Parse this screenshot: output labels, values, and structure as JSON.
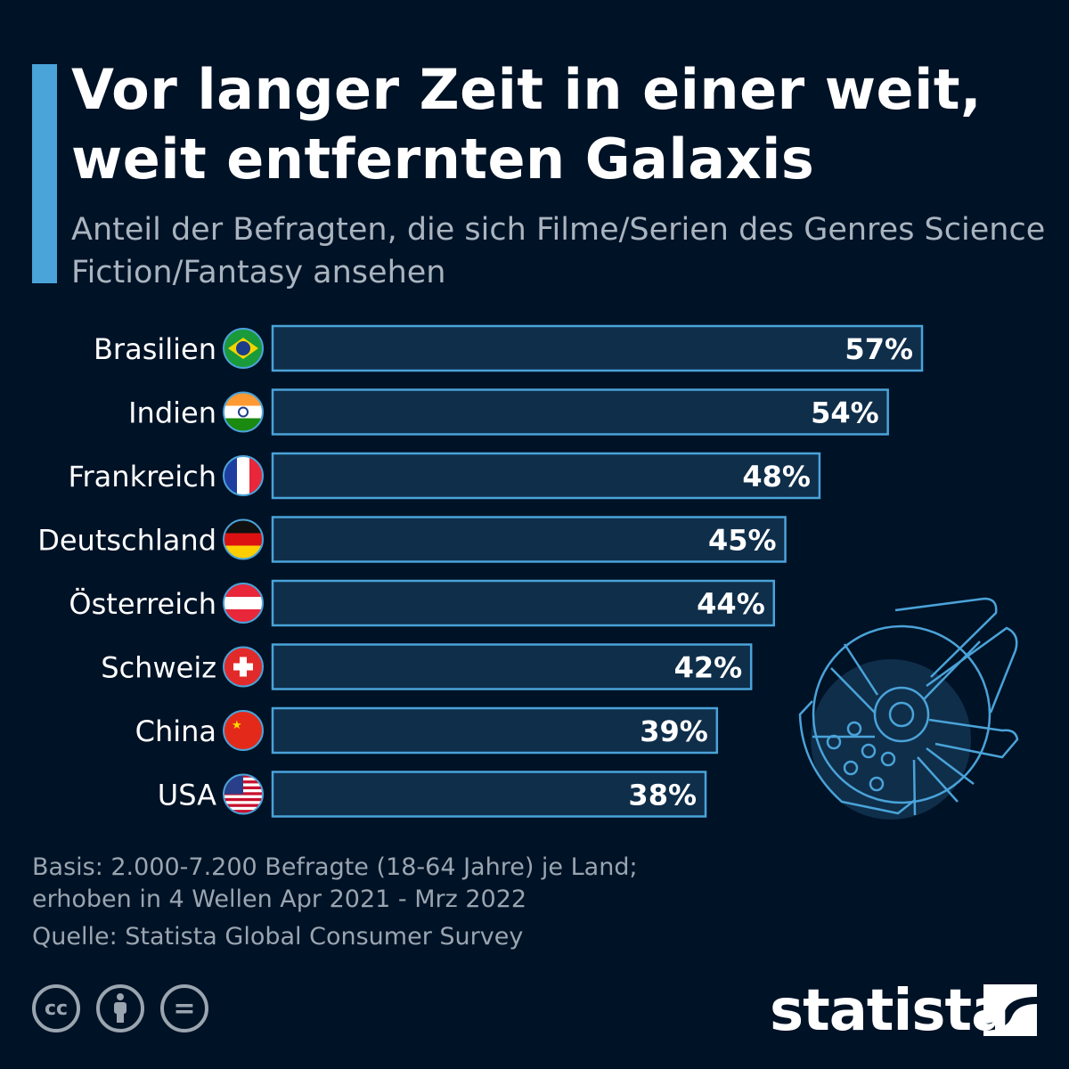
{
  "header": {
    "title_line1": "Vor langer Zeit in einer weit,",
    "title_line2": "weit entfernten Galaxis",
    "subtitle": "Anteil der Befragten, die sich Filme/Serien des Genres Science Fiction/Fantasy ansehen"
  },
  "chart_data": {
    "type": "bar",
    "orientation": "horizontal",
    "categories": [
      "Brasilien",
      "Indien",
      "Frankreich",
      "Deutschland",
      "Österreich",
      "Schweiz",
      "China",
      "USA"
    ],
    "values": [
      57,
      54,
      48,
      45,
      44,
      42,
      39,
      38
    ],
    "value_labels": [
      "57%",
      "54%",
      "48%",
      "45%",
      "44%",
      "42%",
      "39%",
      "38%"
    ],
    "unit": "%",
    "xlim": [
      0,
      100
    ],
    "grid": false,
    "colors": {
      "bar_fill": "#0f2e4a",
      "bar_border": "#4aa3d9",
      "background": "#001226"
    },
    "flags": [
      "brazil-flag",
      "india-flag",
      "france-flag",
      "germany-flag",
      "austria-flag",
      "switzerland-flag",
      "china-flag",
      "usa-flag"
    ]
  },
  "footer": {
    "basis_line1": "Basis: 2.000-7.200 Befragte (18-64 Jahre) je Land;",
    "basis_line2": "erhoben in 4 Wellen Apr 2021 - Mrz 2022",
    "source": "Quelle: Statista Global Consumer Survey",
    "license_icons": [
      "cc",
      "by",
      "nd"
    ],
    "cc_text": "cc",
    "nd_text": "=",
    "brand": "statista"
  }
}
